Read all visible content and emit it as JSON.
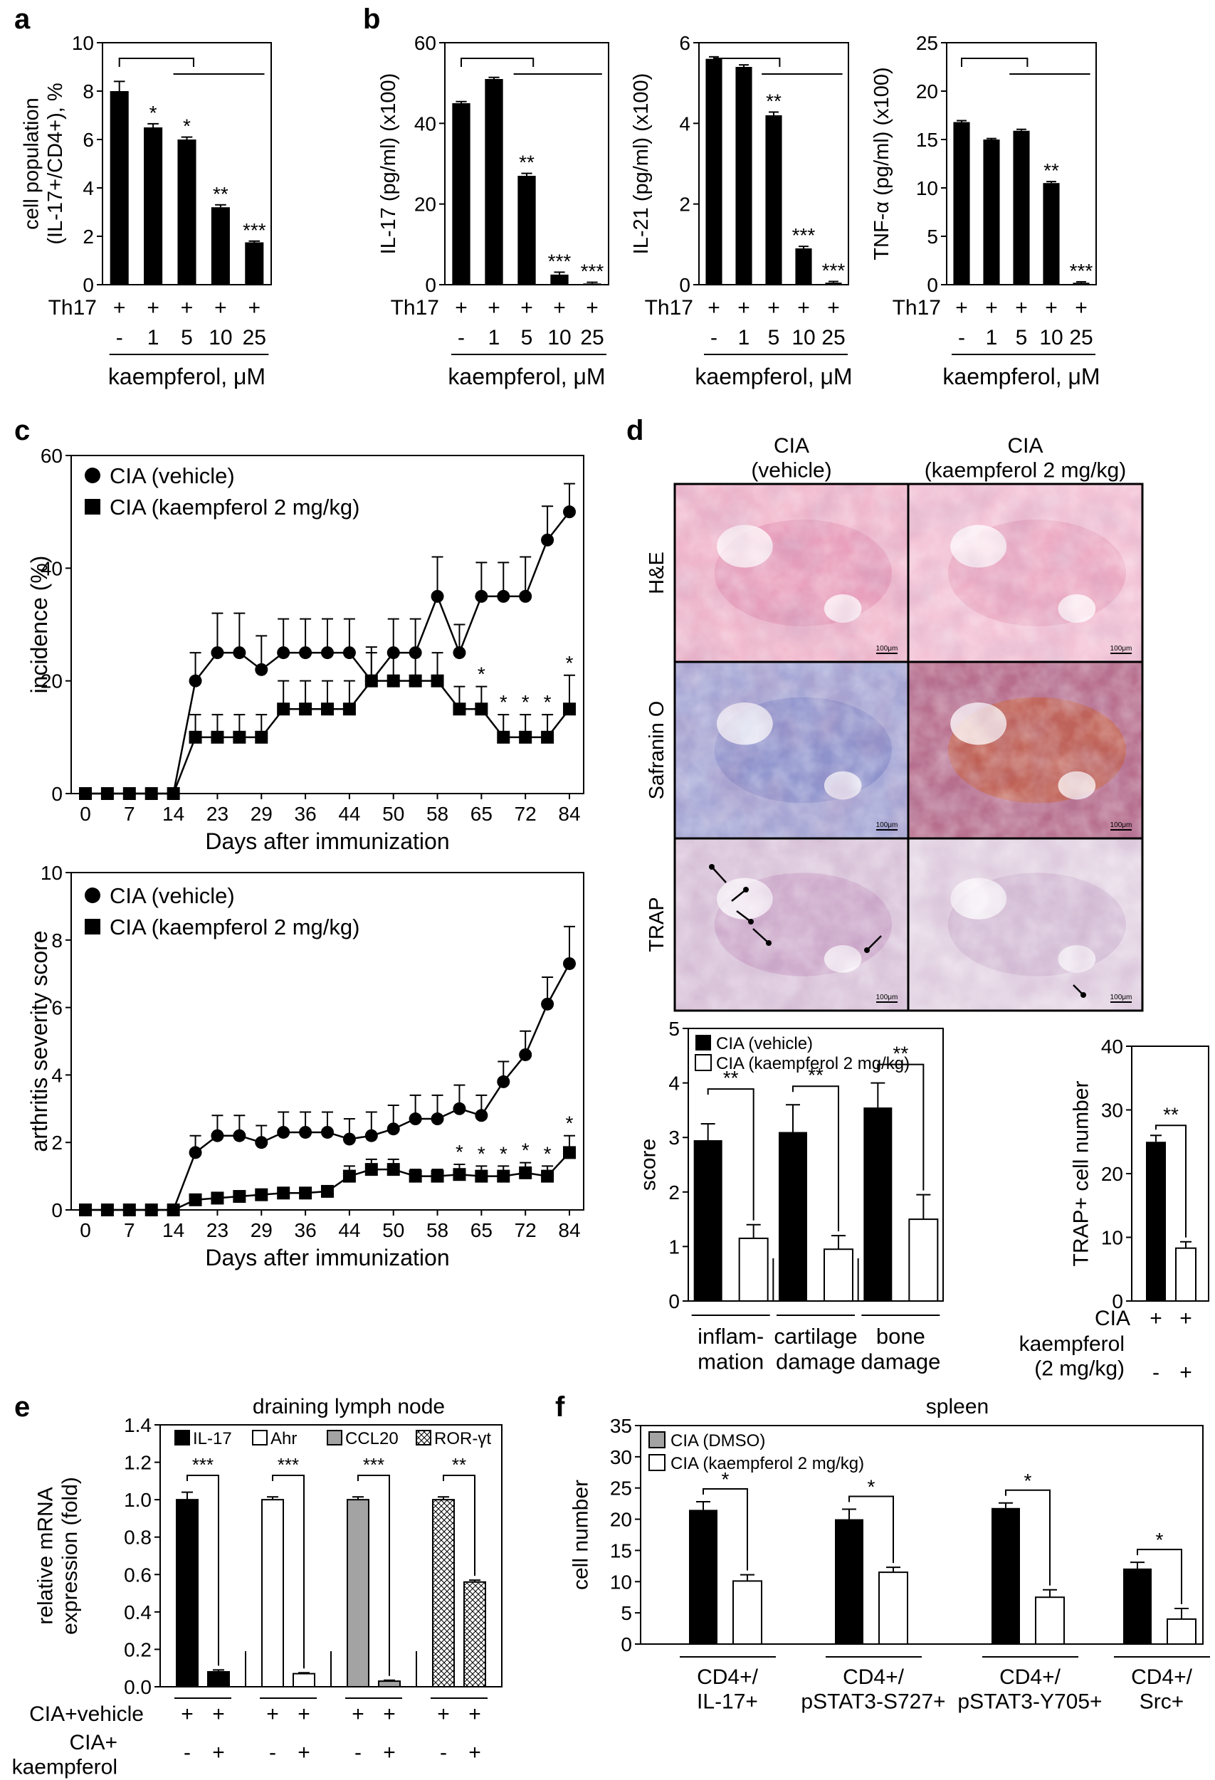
{
  "panel_labels": [
    "a",
    "b",
    "c",
    "d",
    "e",
    "f"
  ],
  "histology": {
    "columns": [
      "CIA\n(vehicle)",
      "CIA\n(kaempferol 2 mg/kg)"
    ],
    "rows": [
      "H&E",
      "Safranin O",
      "TRAP"
    ],
    "scale_label": "100μm"
  },
  "chart_data": [
    {
      "id": "a",
      "type": "bar",
      "ylabel": "cell population\n(IL-17+/CD4+), %",
      "ylim": [
        0,
        10
      ],
      "yticks": [
        0,
        2,
        4,
        6,
        8,
        10
      ],
      "categories": [
        "-",
        "1",
        "5",
        "10",
        "25"
      ],
      "values": [
        8.0,
        6.5,
        6.0,
        3.2,
        1.75
      ],
      "errors": [
        0.4,
        0.15,
        0.1,
        0.1,
        0.05
      ],
      "sig": [
        "",
        "*",
        "*",
        "**",
        "***"
      ],
      "row1_label": "Th17",
      "row1": [
        "+",
        "+",
        "+",
        "+",
        "+"
      ],
      "xlabel": "kaempferol, μM"
    },
    {
      "id": "b1",
      "type": "bar",
      "ylabel": "IL-17 (pg/ml) (x100)",
      "ylim": [
        0,
        60
      ],
      "yticks": [
        0,
        20,
        40,
        60
      ],
      "categories": [
        "-",
        "1",
        "5",
        "10",
        "25"
      ],
      "values": [
        45,
        51,
        27,
        2.5,
        0.3
      ],
      "errors": [
        0.4,
        0.4,
        0.6,
        0.6,
        0.3
      ],
      "sig": [
        "",
        "",
        "**",
        "***",
        "***"
      ],
      "row1_label": "Th17",
      "row1": [
        "+",
        "+",
        "+",
        "+",
        "+"
      ],
      "xlabel": "kaempferol, μM"
    },
    {
      "id": "b2",
      "type": "bar",
      "ylabel": "IL-21 (pg/ml) (x100)",
      "ylim": [
        0,
        6
      ],
      "yticks": [
        0,
        2,
        4,
        6
      ],
      "categories": [
        "-",
        "1",
        "5",
        "10",
        "25"
      ],
      "values": [
        5.6,
        5.4,
        4.2,
        0.9,
        0.05
      ],
      "errors": [
        0.05,
        0.05,
        0.08,
        0.05,
        0.03
      ],
      "sig": [
        "",
        "",
        "**",
        "***",
        "***"
      ],
      "row1_label": "Th17",
      "row1": [
        "+",
        "+",
        "+",
        "+",
        "+"
      ],
      "xlabel": "kaempferol, μM"
    },
    {
      "id": "b3",
      "type": "bar",
      "ylabel": "TNF-α (pg/ml) (x100)",
      "ylim": [
        0,
        25
      ],
      "yticks": [
        0,
        5,
        10,
        15,
        20,
        25
      ],
      "categories": [
        "-",
        "1",
        "5",
        "10",
        "25"
      ],
      "values": [
        16.8,
        15.0,
        15.9,
        10.5,
        0.2
      ],
      "errors": [
        0.15,
        0.1,
        0.15,
        0.15,
        0.1
      ],
      "sig": [
        "",
        "",
        "",
        "**",
        "***"
      ],
      "row1_label": "Th17",
      "row1": [
        "+",
        "+",
        "+",
        "+",
        "+"
      ],
      "xlabel": "kaempferol, μM"
    },
    {
      "id": "c1",
      "type": "line",
      "xlabel": "Days after immunization",
      "ylabel": "incidence (%)",
      "ylim": [
        0,
        60
      ],
      "yticks": [
        0,
        20,
        40,
        60
      ],
      "xticks": [
        "0",
        "7",
        "14",
        "23",
        "29",
        "36",
        "44",
        "50",
        "58",
        "65",
        "72",
        "84"
      ],
      "series": [
        {
          "name": "CIA (vehicle)",
          "marker": "circle",
          "values": [
            0,
            0,
            0,
            0,
            0,
            20,
            25,
            25,
            22,
            25,
            25,
            25,
            25,
            20,
            25,
            25,
            35,
            25,
            35,
            35,
            35,
            45,
            50
          ],
          "errors": [
            0,
            0,
            0,
            0,
            0,
            5,
            7,
            7,
            6,
            6,
            6,
            6,
            6,
            6,
            6,
            6,
            7,
            5,
            6,
            6,
            7,
            6,
            5
          ]
        },
        {
          "name": "CIA (kaempferol 2 mg/kg)",
          "marker": "square",
          "values": [
            0,
            0,
            0,
            0,
            0,
            10,
            10,
            10,
            10,
            15,
            15,
            15,
            15,
            20,
            20,
            20,
            20,
            15,
            15,
            10,
            10,
            10,
            15
          ],
          "errors": [
            0,
            0,
            0,
            0,
            0,
            4,
            4,
            4,
            4,
            5,
            5,
            5,
            5,
            5,
            5,
            5,
            5,
            4,
            4,
            4,
            4,
            4,
            6
          ]
        }
      ],
      "sig": [
        "",
        "",
        "",
        "",
        "",
        "",
        "",
        "",
        "",
        "",
        "",
        "",
        "",
        "",
        "",
        "",
        "",
        "",
        "*",
        "*",
        "*",
        "*",
        "*"
      ]
    },
    {
      "id": "c2",
      "type": "line",
      "xlabel": "Days after immunization",
      "ylabel": "arthritis severity score",
      "ylim": [
        0,
        10
      ],
      "yticks": [
        0,
        2,
        4,
        6,
        8,
        10
      ],
      "xticks": [
        "0",
        "7",
        "14",
        "23",
        "29",
        "36",
        "44",
        "50",
        "58",
        "65",
        "72",
        "84"
      ],
      "series": [
        {
          "name": "CIA (vehicle)",
          "marker": "circle",
          "values": [
            0,
            0,
            0,
            0,
            0,
            1.7,
            2.2,
            2.2,
            2.0,
            2.3,
            2.3,
            2.3,
            2.1,
            2.2,
            2.4,
            2.7,
            2.7,
            3.0,
            2.8,
            3.8,
            4.6,
            6.1,
            7.3
          ],
          "errors": [
            0,
            0,
            0,
            0,
            0,
            0.5,
            0.6,
            0.6,
            0.5,
            0.6,
            0.6,
            0.6,
            0.6,
            0.7,
            0.7,
            0.7,
            0.7,
            0.7,
            0.6,
            0.6,
            0.7,
            0.8,
            1.1
          ]
        },
        {
          "name": "CIA (kaempferol 2 mg/kg)",
          "marker": "square",
          "values": [
            0,
            0,
            0,
            0,
            0,
            0.3,
            0.35,
            0.4,
            0.45,
            0.5,
            0.5,
            0.55,
            1.0,
            1.2,
            1.2,
            1.0,
            1.0,
            1.05,
            1.0,
            1.0,
            1.1,
            1.0,
            1.7
          ],
          "errors": [
            0,
            0,
            0,
            0,
            0,
            0.1,
            0.1,
            0.1,
            0.1,
            0.1,
            0.1,
            0.1,
            0.3,
            0.3,
            0.3,
            0.2,
            0.2,
            0.3,
            0.3,
            0.3,
            0.3,
            0.3,
            0.5
          ]
        }
      ],
      "sig": [
        "",
        "",
        "",
        "",
        "",
        "",
        "",
        "",
        "",
        "",
        "",
        "",
        "",
        "",
        "",
        "",
        "",
        "*",
        "*",
        "*",
        "*",
        "*",
        "*"
      ]
    },
    {
      "id": "d1",
      "type": "bar",
      "ylabel": "score",
      "ylim": [
        0,
        5
      ],
      "yticks": [
        0,
        1,
        2,
        3,
        4,
        5
      ],
      "categories": [
        "inflam-\nmation",
        "cartilage\ndamage",
        "bone\ndamage"
      ],
      "series": [
        {
          "name": "CIA (vehicle)",
          "values": [
            2.95,
            3.1,
            3.55
          ],
          "errors": [
            0.3,
            0.5,
            0.45
          ]
        },
        {
          "name": "CIA (kaempferol 2 mg/kg)",
          "values": [
            1.15,
            0.95,
            1.5
          ],
          "errors": [
            0.25,
            0.25,
            0.45
          ]
        }
      ],
      "sig": [
        "**",
        "**",
        "**"
      ]
    },
    {
      "id": "d2",
      "type": "bar",
      "ylabel": "TRAP+ cell number",
      "ylim": [
        0,
        40
      ],
      "yticks": [
        0,
        10,
        20,
        30,
        40
      ],
      "values": [
        25,
        8.3
      ],
      "errors": [
        1.0,
        1.0
      ],
      "sig": "**",
      "row1_label": "CIA",
      "row1": [
        "+",
        "+"
      ],
      "row2_label": "kaempferol\n(2 mg/kg)",
      "row2": [
        "-",
        "+"
      ]
    },
    {
      "id": "e",
      "type": "bar",
      "title": "draining lymph node",
      "ylabel": "relative mRNA\nexpression (fold)",
      "ylim": [
        0,
        1.4
      ],
      "yticks": [
        "0.0",
        "0.2",
        "0.4",
        "0.6",
        "0.8",
        "1.0",
        "1.2",
        "1.4"
      ],
      "legend": [
        "IL-17",
        "Ahr",
        "CCL20",
        "ROR-γt"
      ],
      "groups": [
        {
          "name": "IL-17",
          "values": [
            1.0,
            0.08
          ],
          "errors": [
            0.04,
            0.01
          ],
          "sig": "***"
        },
        {
          "name": "Ahr",
          "values": [
            1.0,
            0.07
          ],
          "errors": [
            0.015,
            0.005
          ],
          "sig": "***"
        },
        {
          "name": "CCL20",
          "values": [
            1.0,
            0.03
          ],
          "errors": [
            0.015,
            0.005
          ],
          "sig": "***"
        },
        {
          "name": "ROR-γt",
          "values": [
            1.0,
            0.56
          ],
          "errors": [
            0.015,
            0.01
          ],
          "sig": "**"
        }
      ],
      "row1_label": "CIA+vehicle",
      "row1": [
        "+",
        "+"
      ],
      "row2_label": "CIA+\nkaempferol",
      "row2": [
        "-",
        "+"
      ]
    },
    {
      "id": "f",
      "type": "bar",
      "title": "spleen",
      "ylabel": "cell number",
      "ylim": [
        0,
        35
      ],
      "yticks": [
        0,
        5,
        10,
        15,
        20,
        25,
        30,
        35
      ],
      "categories": [
        "CD4+/\nIL-17+",
        "CD4+/\npSTAT3-S727+",
        "CD4+/\npSTAT3-Y705+",
        "CD4+/\nSrc+"
      ],
      "series": [
        {
          "name": "CIA (DMSO)",
          "values": [
            21.5,
            20.0,
            21.8,
            12.1
          ],
          "errors": [
            1.3,
            1.6,
            0.8,
            1.0
          ]
        },
        {
          "name": "CIA (kaempferol 2 mg/kg)",
          "values": [
            10.1,
            11.5,
            7.5,
            4.0
          ],
          "errors": [
            1.0,
            0.8,
            1.2,
            1.7
          ]
        }
      ],
      "sig": [
        "*",
        "*",
        "*",
        "*"
      ]
    }
  ]
}
